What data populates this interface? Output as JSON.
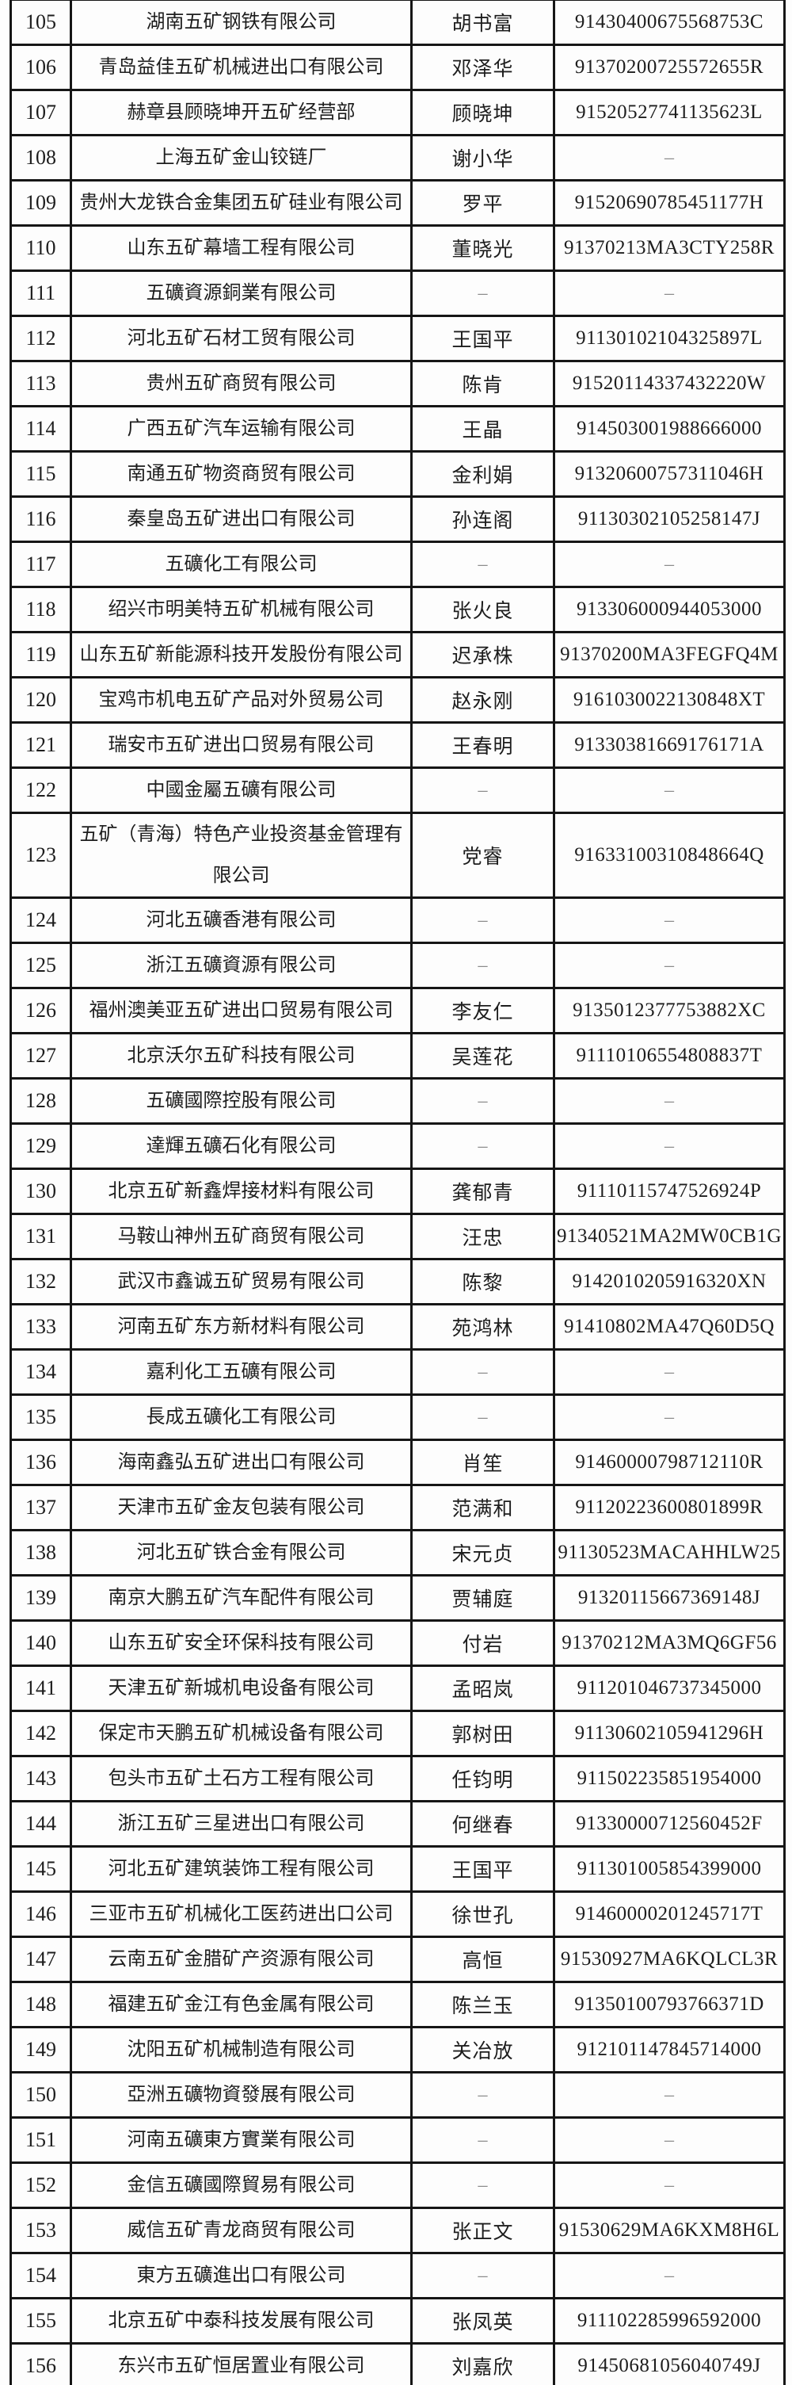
{
  "table": {
    "empty_placeholder": "–",
    "rows": [
      {
        "no": "105",
        "company": "湖南五矿钢铁有限公司",
        "person": "胡书富",
        "code": "91430400675568753C"
      },
      {
        "no": "106",
        "company": "青岛益佳五矿机械进出口有限公司",
        "person": "邓泽华",
        "code": "91370200725572655R"
      },
      {
        "no": "107",
        "company": "赫章县顾晓坤开五矿经营部",
        "person": "顾晓坤",
        "code": "91520527741135623L"
      },
      {
        "no": "108",
        "company": "上海五矿金山铰链厂",
        "person": "谢小华",
        "code": "–"
      },
      {
        "no": "109",
        "company": "贵州大龙铁合金集团五矿硅业有限公司",
        "person": "罗平",
        "code": "91520690785451177H"
      },
      {
        "no": "110",
        "company": "山东五矿幕墙工程有限公司",
        "person": "董晓光",
        "code": "91370213MA3CTY258R"
      },
      {
        "no": "111",
        "company": "五礦資源銅業有限公司",
        "person": "–",
        "code": "–"
      },
      {
        "no": "112",
        "company": "河北五矿石材工贸有限公司",
        "person": "王国平",
        "code": "91130102104325897L"
      },
      {
        "no": "113",
        "company": "贵州五矿商贸有限公司",
        "person": "陈肯",
        "code": "91520114337432220W"
      },
      {
        "no": "114",
        "company": "广西五矿汽车运输有限公司",
        "person": "王晶",
        "code": "914503001988666000"
      },
      {
        "no": "115",
        "company": "南通五矿物资商贸有限公司",
        "person": "金利娟",
        "code": "91320600757311046H"
      },
      {
        "no": "116",
        "company": "秦皇岛五矿进出口有限公司",
        "person": "孙连阁",
        "code": "91130302105258147J"
      },
      {
        "no": "117",
        "company": "五礦化工有限公司",
        "person": "–",
        "code": "–"
      },
      {
        "no": "118",
        "company": "绍兴市明美特五矿机械有限公司",
        "person": "张火良",
        "code": "913306000944053000"
      },
      {
        "no": "119",
        "company": "山东五矿新能源科技开发股份有限公司",
        "person": "迟承株",
        "code": "91370200MA3FEGFQ4M"
      },
      {
        "no": "120",
        "company": "宝鸡市机电五矿产品对外贸易公司",
        "person": "赵永刚",
        "code": "9161030022130848XT"
      },
      {
        "no": "121",
        "company": "瑞安市五矿进出口贸易有限公司",
        "person": "王春明",
        "code": "91330381669176171A"
      },
      {
        "no": "122",
        "company": "中國金屬五礦有限公司",
        "person": "–",
        "code": "–"
      },
      {
        "no": "123",
        "company": "五矿（青海）特色产业投资基金管理有限公司",
        "person": "党睿",
        "code": "91633100310848664Q"
      },
      {
        "no": "124",
        "company": "河北五礦香港有限公司",
        "person": "–",
        "code": "–"
      },
      {
        "no": "125",
        "company": "浙江五礦資源有限公司",
        "person": "–",
        "code": "–"
      },
      {
        "no": "126",
        "company": "福州澳美亚五矿进出口贸易有限公司",
        "person": "李友仁",
        "code": "9135012377753882XC"
      },
      {
        "no": "127",
        "company": "北京沃尔五矿科技有限公司",
        "person": "吴莲花",
        "code": "91110106554808837T"
      },
      {
        "no": "128",
        "company": "五礦國際控股有限公司",
        "person": "–",
        "code": "–"
      },
      {
        "no": "129",
        "company": "達輝五礦石化有限公司",
        "person": "–",
        "code": "–"
      },
      {
        "no": "130",
        "company": "北京五矿新鑫焊接材料有限公司",
        "person": "龚郁青",
        "code": "91110115747526924P"
      },
      {
        "no": "131",
        "company": "马鞍山神州五矿商贸有限公司",
        "person": "汪忠",
        "code": "91340521MA2MW0CB1G"
      },
      {
        "no": "132",
        "company": "武汉市鑫诚五矿贸易有限公司",
        "person": "陈黎",
        "code": "9142010205916320XN"
      },
      {
        "no": "133",
        "company": "河南五矿东方新材料有限公司",
        "person": "苑鸿林",
        "code": "91410802MA47Q60D5Q"
      },
      {
        "no": "134",
        "company": "嘉利化工五礦有限公司",
        "person": "–",
        "code": "–"
      },
      {
        "no": "135",
        "company": "長成五礦化工有限公司",
        "person": "–",
        "code": "–"
      },
      {
        "no": "136",
        "company": "海南鑫弘五矿进出口有限公司",
        "person": "肖笙",
        "code": "91460000798712110R"
      },
      {
        "no": "137",
        "company": "天津市五矿金友包装有限公司",
        "person": "范满和",
        "code": "91120223600801899R"
      },
      {
        "no": "138",
        "company": "河北五矿铁合金有限公司",
        "person": "宋元贞",
        "code": "91130523MACAHHLW25"
      },
      {
        "no": "139",
        "company": "南京大鹏五矿汽车配件有限公司",
        "person": "贾辅庭",
        "code": "91320115667369148J"
      },
      {
        "no": "140",
        "company": "山东五矿安全环保科技有限公司",
        "person": "付岩",
        "code": "91370212MA3MQ6GF56"
      },
      {
        "no": "141",
        "company": "天津五矿新城机电设备有限公司",
        "person": "孟昭岚",
        "code": "911201046737345000"
      },
      {
        "no": "142",
        "company": "保定市天鹏五矿机械设备有限公司",
        "person": "郭树田",
        "code": "91130602105941296H"
      },
      {
        "no": "143",
        "company": "包头市五矿土石方工程有限公司",
        "person": "任钧明",
        "code": "911502235851954000"
      },
      {
        "no": "144",
        "company": "浙江五矿三星进出口有限公司",
        "person": "何继春",
        "code": "91330000712560452F"
      },
      {
        "no": "145",
        "company": "河北五矿建筑装饰工程有限公司",
        "person": "王国平",
        "code": "911301005854399000"
      },
      {
        "no": "146",
        "company": "三亚市五矿机械化工医药进出口公司",
        "person": "徐世孔",
        "code": "91460000201245717T"
      },
      {
        "no": "147",
        "company": "云南五矿金腊矿产资源有限公司",
        "person": "高恒",
        "code": "91530927MA6KQLCL3R"
      },
      {
        "no": "148",
        "company": "福建五矿金江有色金属有限公司",
        "person": "陈兰玉",
        "code": "91350100793766371D"
      },
      {
        "no": "149",
        "company": "沈阳五矿机械制造有限公司",
        "person": "关冶放",
        "code": "912101147845714000"
      },
      {
        "no": "150",
        "company": "亞洲五礦物資發展有限公司",
        "person": "–",
        "code": "–"
      },
      {
        "no": "151",
        "company": "河南五礦東方實業有限公司",
        "person": "–",
        "code": "–"
      },
      {
        "no": "152",
        "company": "金信五礦國際貿易有限公司",
        "person": "–",
        "code": "–"
      },
      {
        "no": "153",
        "company": "威信五矿青龙商贸有限公司",
        "person": "张正文",
        "code": "91530629MA6KXM8H6L"
      },
      {
        "no": "154",
        "company": "東方五礦進出口有限公司",
        "person": "–",
        "code": "–"
      },
      {
        "no": "155",
        "company": "北京五矿中泰科技发展有限公司",
        "person": "张凤英",
        "code": "911102285996592000"
      },
      {
        "no": "156",
        "company": "东兴市五矿恒居置业有限公司",
        "person": "刘嘉欣",
        "code": "91450681056040749J"
      }
    ]
  },
  "colors": {
    "border": "#161616",
    "text": "#1d1d1d",
    "dash": "#8b8b8b",
    "background": "#fdfdfd"
  }
}
